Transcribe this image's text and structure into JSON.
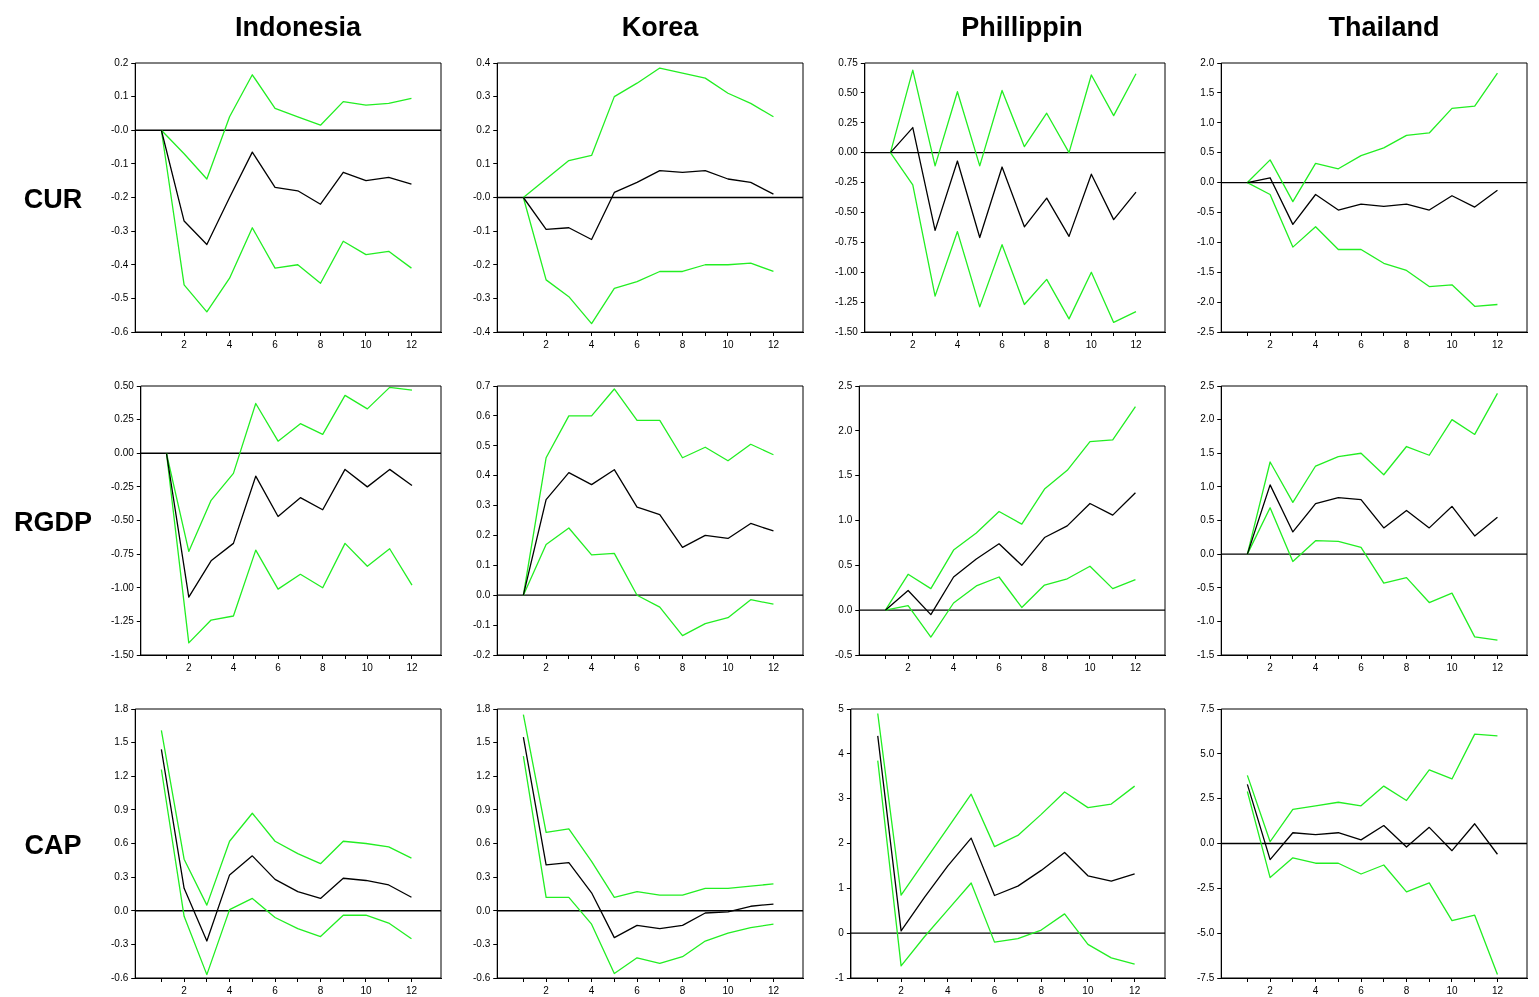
{
  "chart_data": [
    {
      "type": "line",
      "title": "Indonesia",
      "ylabel": "CUR",
      "x": [
        1,
        2,
        3,
        4,
        5,
        6,
        7,
        8,
        9,
        10,
        11,
        12
      ],
      "xlim": [
        -0.15,
        13.3
      ],
      "xticks": [
        {
          "value": 1,
          "label": null
        },
        2,
        {
          "value": 3,
          "label": null
        },
        4,
        {
          "value": 5,
          "label": null
        },
        6,
        {
          "value": 7,
          "label": null
        },
        8,
        {
          "value": 9,
          "label": null
        },
        10,
        {
          "value": 11,
          "label": null
        },
        12
      ],
      "ylim": [
        -0.6,
        0.2
      ],
      "yticks": [
        -0.6,
        -0.5,
        -0.4,
        -0.3,
        -0.2,
        -0.1,
        {
          "value": 0,
          "label": "-0.0"
        },
        0.1,
        0.2
      ],
      "grid": false,
      "legend": false,
      "marker": "none",
      "line_style": "solid",
      "ref_lines": [
        {
          "axis": "y",
          "value": 0,
          "color": "#000000"
        }
      ],
      "series": [
        {
          "color": "#000000",
          "values": [
            0,
            -0.27,
            -0.34,
            -0.2,
            -0.065,
            -0.17,
            -0.18,
            -0.22,
            -0.125,
            -0.15,
            -0.14,
            -0.16
          ]
        },
        {
          "color": "#22ee22",
          "values": [
            0,
            -0.07,
            -0.145,
            0.04,
            0.165,
            0.065,
            0.04,
            0.015,
            0.085,
            0.075,
            0.08,
            0.095
          ]
        },
        {
          "color": "#22ee22",
          "values": [
            0,
            -0.46,
            -0.54,
            -0.44,
            -0.29,
            -0.41,
            -0.4,
            -0.455,
            -0.33,
            -0.37,
            -0.36,
            -0.41
          ]
        }
      ]
    },
    {
      "type": "line",
      "title": "Korea",
      "x": [
        1,
        2,
        3,
        4,
        5,
        6,
        7,
        8,
        9,
        10,
        11,
        12
      ],
      "xlim": [
        -0.15,
        13.3
      ],
      "xticks": [
        {
          "value": 1,
          "label": null
        },
        2,
        {
          "value": 3,
          "label": null
        },
        4,
        {
          "value": 5,
          "label": null
        },
        6,
        {
          "value": 7,
          "label": null
        },
        8,
        {
          "value": 9,
          "label": null
        },
        10,
        {
          "value": 11,
          "label": null
        },
        12
      ],
      "ylim": [
        -0.4,
        0.4
      ],
      "yticks": [
        -0.4,
        -0.3,
        -0.2,
        -0.1,
        {
          "value": 0,
          "label": "-0.0"
        },
        0.1,
        0.2,
        0.3,
        0.4
      ],
      "grid": false,
      "legend": false,
      "marker": "none",
      "line_style": "solid",
      "ref_lines": [
        {
          "axis": "y",
          "value": 0,
          "color": "#000000"
        }
      ],
      "series": [
        {
          "color": "#000000",
          "values": [
            0,
            -0.095,
            -0.09,
            -0.125,
            0.015,
            0.045,
            0.08,
            0.075,
            0.08,
            0.055,
            0.045,
            0.01
          ]
        },
        {
          "color": "#22ee22",
          "values": [
            0,
            0.055,
            0.11,
            0.125,
            0.3,
            0.34,
            0.385,
            0.37,
            0.355,
            0.31,
            0.28,
            0.24
          ]
        },
        {
          "color": "#22ee22",
          "values": [
            0,
            -0.245,
            -0.295,
            -0.375,
            -0.27,
            -0.25,
            -0.22,
            -0.22,
            -0.2,
            -0.2,
            -0.195,
            -0.22
          ]
        }
      ]
    },
    {
      "type": "line",
      "title": "Phillippin",
      "x": [
        1,
        2,
        3,
        4,
        5,
        6,
        7,
        8,
        9,
        10,
        11,
        12
      ],
      "xlim": [
        -0.15,
        13.3
      ],
      "xticks": [
        {
          "value": 1,
          "label": null
        },
        2,
        {
          "value": 3,
          "label": null
        },
        4,
        {
          "value": 5,
          "label": null
        },
        6,
        {
          "value": 7,
          "label": null
        },
        8,
        {
          "value": 9,
          "label": null
        },
        10,
        {
          "value": 11,
          "label": null
        },
        12
      ],
      "ylim": [
        -1.5,
        0.75
      ],
      "yticks": [
        {
          "value": -1.5,
          "label": "-1.50"
        },
        -1.25,
        {
          "value": -1,
          "label": "-1.00"
        },
        -0.75,
        {
          "value": -0.5,
          "label": "-0.50"
        },
        -0.25,
        {
          "value": 0,
          "label": "0.00"
        },
        0.25,
        {
          "value": 0.5,
          "label": "0.50"
        },
        0.75
      ],
      "grid": false,
      "legend": false,
      "marker": "none",
      "line_style": "solid",
      "ref_lines": [
        {
          "axis": "y",
          "value": 0,
          "color": "#000000"
        }
      ],
      "series": [
        {
          "color": "#000000",
          "values": [
            0,
            0.21,
            -0.65,
            -0.07,
            -0.71,
            -0.12,
            -0.62,
            -0.38,
            -0.7,
            -0.18,
            -0.56,
            -0.33
          ]
        },
        {
          "color": "#22ee22",
          "values": [
            0,
            0.69,
            -0.11,
            0.51,
            -0.11,
            0.52,
            0.05,
            0.33,
            0,
            0.65,
            0.31,
            0.66
          ]
        },
        {
          "color": "#22ee22",
          "values": [
            0,
            -0.27,
            -1.2,
            -0.66,
            -1.29,
            -0.77,
            -1.27,
            -1.06,
            -1.39,
            -1,
            -1.42,
            -1.33
          ]
        }
      ]
    },
    {
      "type": "line",
      "title": "Thailand",
      "x": [
        1,
        2,
        3,
        4,
        5,
        6,
        7,
        8,
        9,
        10,
        11,
        12
      ],
      "xlim": [
        -0.15,
        13.3
      ],
      "xticks": [
        {
          "value": 1,
          "label": null
        },
        2,
        {
          "value": 3,
          "label": null
        },
        4,
        {
          "value": 5,
          "label": null
        },
        6,
        {
          "value": 7,
          "label": null
        },
        8,
        {
          "value": 9,
          "label": null
        },
        10,
        {
          "value": 11,
          "label": null
        },
        12
      ],
      "ylim": [
        -2.5,
        2
      ],
      "yticks": [
        -2.5,
        {
          "value": -2,
          "label": "-2.0"
        },
        -1.5,
        {
          "value": -1,
          "label": "-1.0"
        },
        -0.5,
        {
          "value": 0,
          "label": "0.0"
        },
        0.5,
        {
          "value": 1,
          "label": "1.0"
        },
        1.5,
        {
          "value": 2,
          "label": "2.0"
        }
      ],
      "grid": false,
      "legend": false,
      "marker": "none",
      "line_style": "solid",
      "ref_lines": [
        {
          "axis": "y",
          "value": 0,
          "color": "#000000"
        }
      ],
      "series": [
        {
          "color": "#000000",
          "values": [
            0,
            0.08,
            -0.7,
            -0.2,
            -0.46,
            -0.36,
            -0.4,
            -0.36,
            -0.46,
            -0.22,
            -0.41,
            -0.13
          ]
        },
        {
          "color": "#22ee22",
          "values": [
            0,
            0.38,
            -0.32,
            0.32,
            0.23,
            0.45,
            0.58,
            0.79,
            0.83,
            1.24,
            1.28,
            1.83
          ]
        },
        {
          "color": "#22ee22",
          "values": [
            0,
            -0.2,
            -1.08,
            -0.74,
            -1.12,
            -1.12,
            -1.35,
            -1.47,
            -1.74,
            -1.71,
            -2.07,
            -2.04
          ]
        }
      ]
    },
    {
      "type": "line",
      "ylabel": "RGDP",
      "x": [
        1,
        2,
        3,
        4,
        5,
        6,
        7,
        8,
        9,
        10,
        11,
        12
      ],
      "xlim": [
        -0.15,
        13.3
      ],
      "xticks": [
        {
          "value": 1,
          "label": null
        },
        2,
        {
          "value": 3,
          "label": null
        },
        4,
        {
          "value": 5,
          "label": null
        },
        6,
        {
          "value": 7,
          "label": null
        },
        8,
        {
          "value": 9,
          "label": null
        },
        10,
        {
          "value": 11,
          "label": null
        },
        12
      ],
      "ylim": [
        -1.5,
        0.5
      ],
      "yticks": [
        {
          "value": -1.5,
          "label": "-1.50"
        },
        -1.25,
        {
          "value": -1,
          "label": "-1.00"
        },
        -0.75,
        {
          "value": -0.5,
          "label": "-0.50"
        },
        -0.25,
        {
          "value": 0,
          "label": "0.00"
        },
        0.25,
        {
          "value": 0.5,
          "label": "0.50"
        }
      ],
      "grid": false,
      "legend": false,
      "marker": "none",
      "line_style": "solid",
      "ref_lines": [
        {
          "axis": "y",
          "value": 0,
          "color": "#000000"
        }
      ],
      "series": [
        {
          "color": "#000000",
          "values": [
            0,
            -1.07,
            -0.8,
            -0.67,
            -0.17,
            -0.47,
            -0.33,
            -0.42,
            -0.12,
            -0.25,
            -0.12,
            -0.24
          ]
        },
        {
          "color": "#22ee22",
          "values": [
            0,
            -0.73,
            -0.35,
            -0.15,
            0.37,
            0.09,
            0.22,
            0.14,
            0.43,
            0.33,
            0.49,
            0.47
          ]
        },
        {
          "color": "#22ee22",
          "values": [
            0,
            -1.41,
            -1.24,
            -1.21,
            -0.72,
            -1.01,
            -0.9,
            -1,
            -0.67,
            -0.84,
            -0.71,
            -0.98
          ]
        }
      ]
    },
    {
      "type": "line",
      "x": [
        1,
        2,
        3,
        4,
        5,
        6,
        7,
        8,
        9,
        10,
        11,
        12
      ],
      "xlim": [
        -0.15,
        13.3
      ],
      "xticks": [
        {
          "value": 1,
          "label": null
        },
        2,
        {
          "value": 3,
          "label": null
        },
        4,
        {
          "value": 5,
          "label": null
        },
        6,
        {
          "value": 7,
          "label": null
        },
        8,
        {
          "value": 9,
          "label": null
        },
        10,
        {
          "value": 11,
          "label": null
        },
        12
      ],
      "ylim": [
        -0.2,
        0.7
      ],
      "yticks": [
        -0.2,
        -0.1,
        {
          "value": 0,
          "label": "0.0"
        },
        0.1,
        0.2,
        0.3,
        0.4,
        0.5,
        0.6,
        0.7
      ],
      "grid": false,
      "legend": false,
      "marker": "none",
      "line_style": "solid",
      "ref_lines": [
        {
          "axis": "y",
          "value": 0,
          "color": "#000000"
        }
      ],
      "series": [
        {
          "color": "#000000",
          "values": [
            0,
            0.32,
            0.41,
            0.37,
            0.42,
            0.295,
            0.27,
            0.16,
            0.2,
            0.19,
            0.24,
            0.215
          ]
        },
        {
          "color": "#22ee22",
          "values": [
            0,
            0.46,
            0.6,
            0.6,
            0.69,
            0.585,
            0.585,
            0.46,
            0.495,
            0.45,
            0.505,
            0.47
          ]
        },
        {
          "color": "#22ee22",
          "values": [
            0,
            0.17,
            0.225,
            0.135,
            0.14,
            0,
            -0.04,
            -0.135,
            -0.095,
            -0.075,
            -0.015,
            -0.03
          ]
        }
      ]
    },
    {
      "type": "line",
      "x": [
        1,
        2,
        3,
        4,
        5,
        6,
        7,
        8,
        9,
        10,
        11,
        12
      ],
      "xlim": [
        -0.15,
        13.3
      ],
      "xticks": [
        {
          "value": 1,
          "label": null
        },
        2,
        {
          "value": 3,
          "label": null
        },
        4,
        {
          "value": 5,
          "label": null
        },
        6,
        {
          "value": 7,
          "label": null
        },
        8,
        {
          "value": 9,
          "label": null
        },
        10,
        {
          "value": 11,
          "label": null
        },
        12
      ],
      "ylim": [
        -0.5,
        2.5
      ],
      "yticks": [
        -0.5,
        {
          "value": 0,
          "label": "0.0"
        },
        0.5,
        {
          "value": 1,
          "label": "1.0"
        },
        1.5,
        {
          "value": 2,
          "label": "2.0"
        },
        2.5
      ],
      "grid": false,
      "legend": false,
      "marker": "none",
      "line_style": "solid",
      "ref_lines": [
        {
          "axis": "y",
          "value": 0,
          "color": "#000000"
        }
      ],
      "series": [
        {
          "color": "#000000",
          "values": [
            0,
            0.22,
            -0.05,
            0.37,
            0.57,
            0.74,
            0.5,
            0.81,
            0.94,
            1.19,
            1.06,
            1.31
          ]
        },
        {
          "color": "#22ee22",
          "values": [
            0,
            0.4,
            0.24,
            0.67,
            0.86,
            1.1,
            0.96,
            1.35,
            1.56,
            1.88,
            1.9,
            2.27
          ]
        },
        {
          "color": "#22ee22",
          "values": [
            0,
            0.05,
            -0.3,
            0.08,
            0.27,
            0.37,
            0.03,
            0.28,
            0.35,
            0.49,
            0.24,
            0.34
          ]
        }
      ]
    },
    {
      "type": "line",
      "x": [
        1,
        2,
        3,
        4,
        5,
        6,
        7,
        8,
        9,
        10,
        11,
        12
      ],
      "xlim": [
        -0.15,
        13.3
      ],
      "xticks": [
        {
          "value": 1,
          "label": null
        },
        2,
        {
          "value": 3,
          "label": null
        },
        4,
        {
          "value": 5,
          "label": null
        },
        6,
        {
          "value": 7,
          "label": null
        },
        8,
        {
          "value": 9,
          "label": null
        },
        10,
        {
          "value": 11,
          "label": null
        },
        12
      ],
      "ylim": [
        -1.5,
        2.5
      ],
      "yticks": [
        -1.5,
        {
          "value": -1,
          "label": "-1.0"
        },
        -0.5,
        {
          "value": 0,
          "label": "0.0"
        },
        0.5,
        {
          "value": 1,
          "label": "1.0"
        },
        1.5,
        {
          "value": 2,
          "label": "2.0"
        },
        2.5
      ],
      "grid": false,
      "legend": false,
      "marker": "none",
      "line_style": "solid",
      "ref_lines": [
        {
          "axis": "y",
          "value": 0,
          "color": "#000000"
        }
      ],
      "series": [
        {
          "color": "#000000",
          "values": [
            0,
            1.03,
            0.33,
            0.75,
            0.84,
            0.81,
            0.39,
            0.65,
            0.39,
            0.71,
            0.27,
            0.55
          ]
        },
        {
          "color": "#22ee22",
          "values": [
            0,
            1.37,
            0.77,
            1.31,
            1.45,
            1.5,
            1.18,
            1.6,
            1.47,
            2,
            1.78,
            2.39
          ]
        },
        {
          "color": "#22ee22",
          "values": [
            0,
            0.69,
            -0.11,
            0.2,
            0.19,
            0.1,
            -0.43,
            -0.35,
            -0.72,
            -0.58,
            -1.23,
            -1.28
          ]
        }
      ]
    },
    {
      "type": "line",
      "ylabel": "CAP",
      "x": [
        1,
        2,
        3,
        4,
        5,
        6,
        7,
        8,
        9,
        10,
        11,
        12
      ],
      "xlim": [
        -0.15,
        13.3
      ],
      "xticks": [
        {
          "value": 1,
          "label": null
        },
        2,
        {
          "value": 3,
          "label": null
        },
        4,
        {
          "value": 5,
          "label": null
        },
        6,
        {
          "value": 7,
          "label": null
        },
        8,
        {
          "value": 9,
          "label": null
        },
        10,
        {
          "value": 11,
          "label": null
        },
        12
      ],
      "ylim": [
        -0.6,
        1.8
      ],
      "yticks": [
        -0.6,
        -0.3,
        {
          "value": 0,
          "label": "0.0"
        },
        0.3,
        0.6,
        0.9,
        1.2,
        1.5,
        1.8
      ],
      "grid": false,
      "legend": false,
      "marker": "none",
      "line_style": "solid",
      "ref_lines": [
        {
          "axis": "y",
          "value": 0,
          "color": "#000000"
        }
      ],
      "series": [
        {
          "color": "#000000",
          "values": [
            1.44,
            0.2,
            -0.27,
            0.32,
            0.49,
            0.28,
            0.17,
            0.11,
            0.29,
            0.27,
            0.23,
            0.12
          ]
        },
        {
          "color": "#22ee22",
          "values": [
            1.61,
            0.46,
            0.05,
            0.62,
            0.87,
            0.62,
            0.51,
            0.42,
            0.62,
            0.6,
            0.57,
            0.47
          ]
        },
        {
          "color": "#22ee22",
          "values": [
            1.26,
            -0.05,
            -0.57,
            0.01,
            0.11,
            -0.06,
            -0.16,
            -0.23,
            -0.04,
            -0.04,
            -0.11,
            -0.25
          ]
        }
      ]
    },
    {
      "type": "line",
      "x": [
        1,
        2,
        3,
        4,
        5,
        6,
        7,
        8,
        9,
        10,
        11,
        12
      ],
      "xlim": [
        -0.15,
        13.3
      ],
      "xticks": [
        {
          "value": 1,
          "label": null
        },
        2,
        {
          "value": 3,
          "label": null
        },
        4,
        {
          "value": 5,
          "label": null
        },
        6,
        {
          "value": 7,
          "label": null
        },
        8,
        {
          "value": 9,
          "label": null
        },
        10,
        {
          "value": 11,
          "label": null
        },
        12
      ],
      "ylim": [
        -0.6,
        1.8
      ],
      "yticks": [
        -0.6,
        -0.3,
        {
          "value": 0,
          "label": "0.0"
        },
        0.3,
        0.6,
        0.9,
        1.2,
        1.5,
        1.8
      ],
      "grid": false,
      "legend": false,
      "marker": "none",
      "line_style": "solid",
      "ref_lines": [
        {
          "axis": "y",
          "value": 0,
          "color": "#000000"
        }
      ],
      "series": [
        {
          "color": "#000000",
          "values": [
            1.55,
            0.41,
            0.43,
            0.16,
            -0.24,
            -0.13,
            -0.16,
            -0.13,
            -0.02,
            -0.01,
            0.04,
            0.06
          ]
        },
        {
          "color": "#22ee22",
          "values": [
            1.75,
            0.7,
            0.73,
            0.44,
            0.12,
            0.17,
            0.14,
            0.14,
            0.2,
            0.2,
            0.22,
            0.24
          ]
        },
        {
          "color": "#22ee22",
          "values": [
            1.38,
            0.12,
            0.12,
            -0.12,
            -0.56,
            -0.42,
            -0.47,
            -0.41,
            -0.27,
            -0.2,
            -0.15,
            -0.12
          ]
        }
      ]
    },
    {
      "type": "line",
      "x": [
        1,
        2,
        3,
        4,
        5,
        6,
        7,
        8,
        9,
        10,
        11,
        12
      ],
      "xlim": [
        -0.15,
        13.3
      ],
      "xticks": [
        {
          "value": 1,
          "label": null
        },
        2,
        {
          "value": 3,
          "label": null
        },
        4,
        {
          "value": 5,
          "label": null
        },
        6,
        {
          "value": 7,
          "label": null
        },
        8,
        {
          "value": 9,
          "label": null
        },
        10,
        {
          "value": 11,
          "label": null
        },
        12
      ],
      "ylim": [
        -1,
        5
      ],
      "yticks": [
        -1,
        0,
        1,
        2,
        3,
        4,
        5
      ],
      "grid": false,
      "legend": false,
      "marker": "none",
      "line_style": "solid",
      "ref_lines": [
        {
          "axis": "y",
          "value": 0,
          "color": "#000000"
        }
      ],
      "series": [
        {
          "color": "#000000",
          "values": [
            4.4,
            0.05,
            0.8,
            1.5,
            2.12,
            0.84,
            1.05,
            1.4,
            1.8,
            1.28,
            1.16,
            1.32
          ]
        },
        {
          "color": "#22ee22",
          "values": [
            4.9,
            0.85,
            1.6,
            2.35,
            3.1,
            1.93,
            2.18,
            2.65,
            3.15,
            2.8,
            2.88,
            3.28
          ]
        },
        {
          "color": "#22ee22",
          "values": [
            3.85,
            -0.73,
            -0.08,
            0.52,
            1.12,
            -0.2,
            -0.12,
            0.07,
            0.43,
            -0.25,
            -0.55,
            -0.69
          ]
        }
      ]
    },
    {
      "type": "line",
      "x": [
        1,
        2,
        3,
        4,
        5,
        6,
        7,
        8,
        9,
        10,
        11,
        12
      ],
      "xlim": [
        -0.15,
        13.3
      ],
      "xticks": [
        {
          "value": 1,
          "label": null
        },
        2,
        {
          "value": 3,
          "label": null
        },
        4,
        {
          "value": 5,
          "label": null
        },
        6,
        {
          "value": 7,
          "label": null
        },
        8,
        {
          "value": 9,
          "label": null
        },
        10,
        {
          "value": 11,
          "label": null
        },
        12
      ],
      "ylim": [
        -7.5,
        7.5
      ],
      "yticks": [
        -7.5,
        {
          "value": -5,
          "label": "-5.0"
        },
        -2.5,
        {
          "value": 0,
          "label": "0.0"
        },
        2.5,
        {
          "value": 5,
          "label": "5.0"
        },
        7.5
      ],
      "grid": false,
      "legend": false,
      "marker": "none",
      "line_style": "solid",
      "ref_lines": [
        {
          "axis": "y",
          "value": 0,
          "color": "#000000"
        }
      ],
      "series": [
        {
          "color": "#000000",
          "values": [
            3.3,
            -0.9,
            0.6,
            0.5,
            0.6,
            0.2,
            1,
            -0.2,
            0.9,
            -0.4,
            1.1,
            -0.6
          ]
        },
        {
          "color": "#22ee22",
          "values": [
            3.8,
            0.1,
            1.9,
            2.1,
            2.3,
            2.1,
            3.2,
            2.4,
            4.1,
            3.6,
            6.1,
            6
          ]
        },
        {
          "color": "#22ee22",
          "values": [
            2.9,
            -1.9,
            -0.8,
            -1.1,
            -1.1,
            -1.7,
            -1.2,
            -2.7,
            -2.2,
            -4.3,
            -4,
            -7.3
          ]
        }
      ]
    }
  ]
}
